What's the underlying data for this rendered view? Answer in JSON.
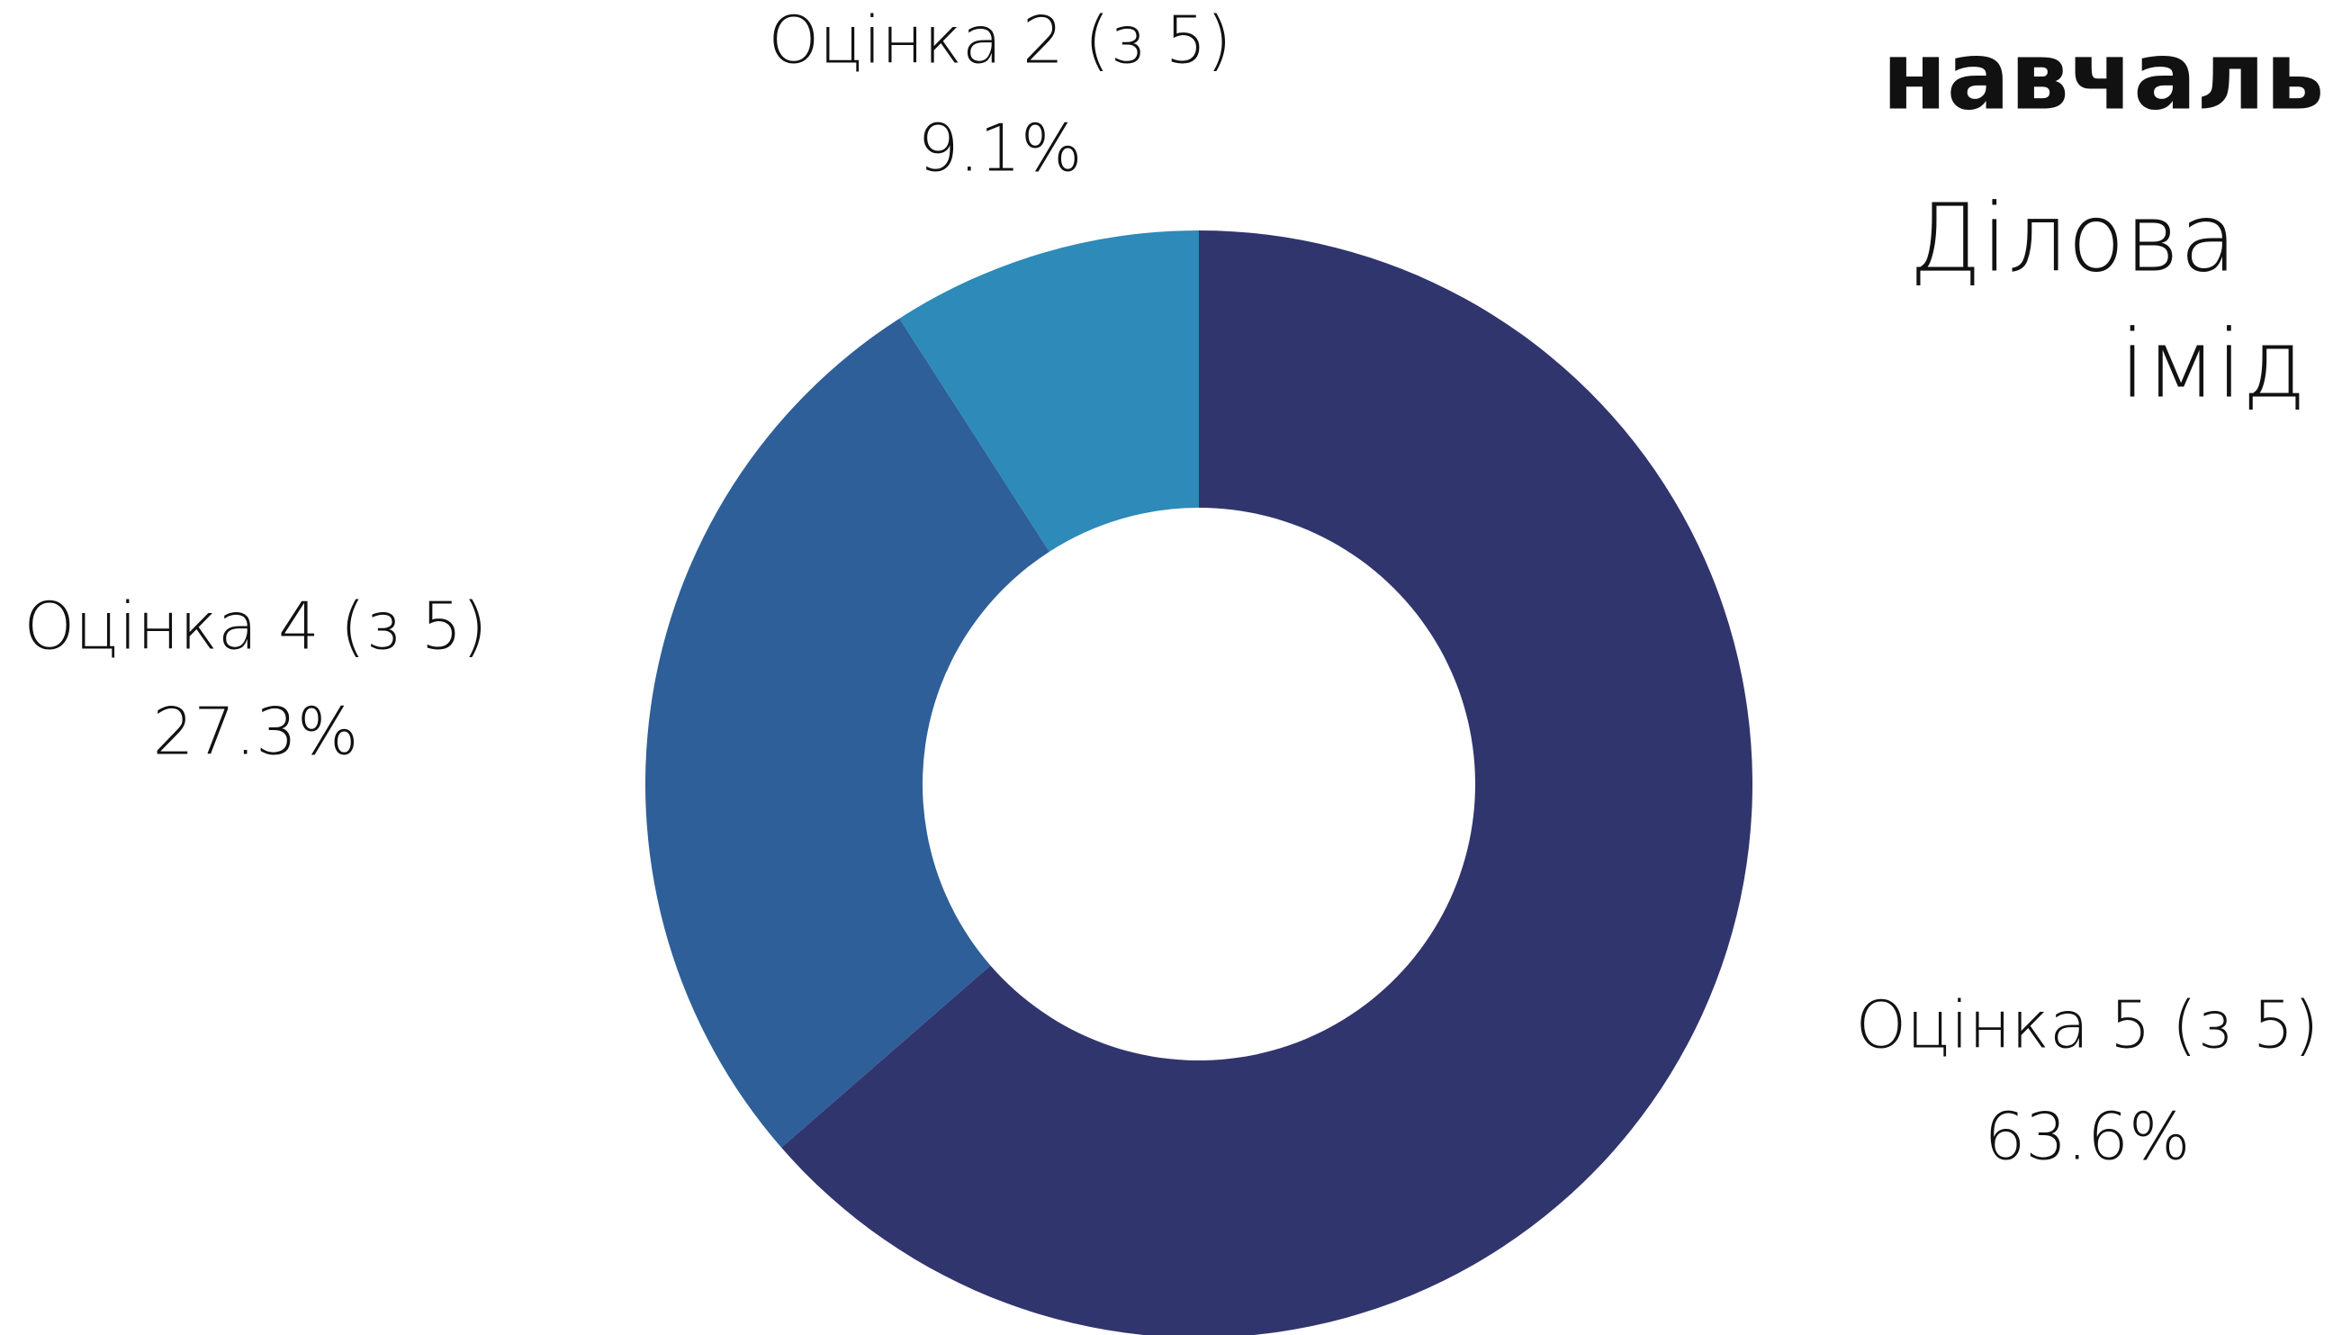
{
  "chart_data": {
    "type": "pie",
    "donut": true,
    "title_lines": [
      "навчаль",
      "Ділова",
      "імід"
    ],
    "categories": [
      "Оцінка 5 (з 5)",
      "Оцінка 4 (з 5)",
      "Оцінка 2 (з 5)"
    ],
    "values": [
      63.6,
      27.3,
      9.1
    ],
    "value_labels": [
      "63.6%",
      "27.3%",
      "9.1%"
    ],
    "colors": [
      "#31356e",
      "#2f5f98",
      "#2e8ab8"
    ]
  }
}
